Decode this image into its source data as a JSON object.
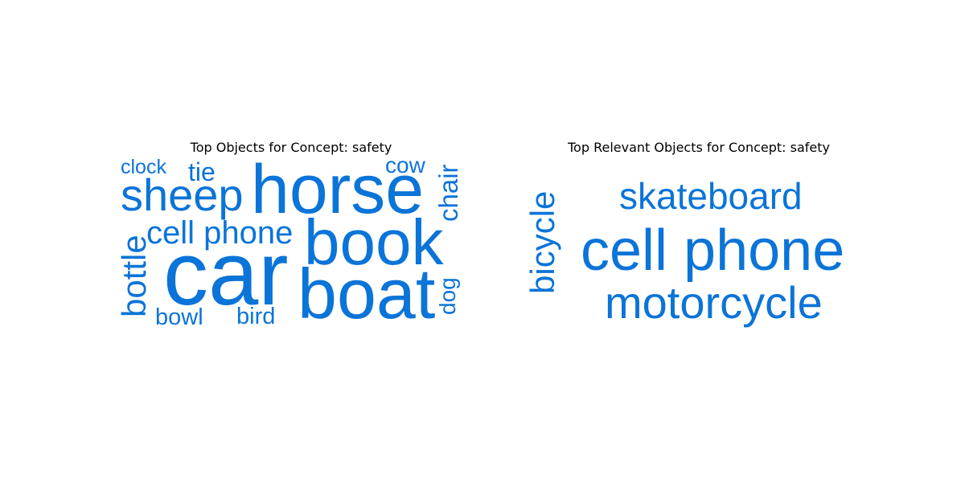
{
  "chart_data": [
    {
      "type": "wordcloud",
      "title": "Top Objects for Concept: safety",
      "color": "#0b74d8",
      "words": [
        {
          "text": "car",
          "weight": 1.0
        },
        {
          "text": "boat",
          "weight": 0.85
        },
        {
          "text": "horse",
          "weight": 0.8
        },
        {
          "text": "book",
          "weight": 0.78
        },
        {
          "text": "sheep",
          "weight": 0.55
        },
        {
          "text": "cell phone",
          "weight": 0.4
        },
        {
          "text": "bottle",
          "weight": 0.4
        },
        {
          "text": "chair",
          "weight": 0.33
        },
        {
          "text": "tie",
          "weight": 0.3
        },
        {
          "text": "bowl",
          "weight": 0.3
        },
        {
          "text": "bird",
          "weight": 0.3
        },
        {
          "text": "dog",
          "weight": 0.29
        },
        {
          "text": "cow",
          "weight": 0.27
        },
        {
          "text": "clock",
          "weight": 0.26
        }
      ]
    },
    {
      "type": "wordcloud",
      "title": "Top Relevant Objects for Concept: safety",
      "color": "#0b74d8",
      "words": [
        {
          "text": "cell phone",
          "weight": 1.0
        },
        {
          "text": "motorcycle",
          "weight": 0.75
        },
        {
          "text": "skateboard",
          "weight": 0.6
        },
        {
          "text": "bicycle",
          "weight": 0.55
        }
      ]
    }
  ]
}
